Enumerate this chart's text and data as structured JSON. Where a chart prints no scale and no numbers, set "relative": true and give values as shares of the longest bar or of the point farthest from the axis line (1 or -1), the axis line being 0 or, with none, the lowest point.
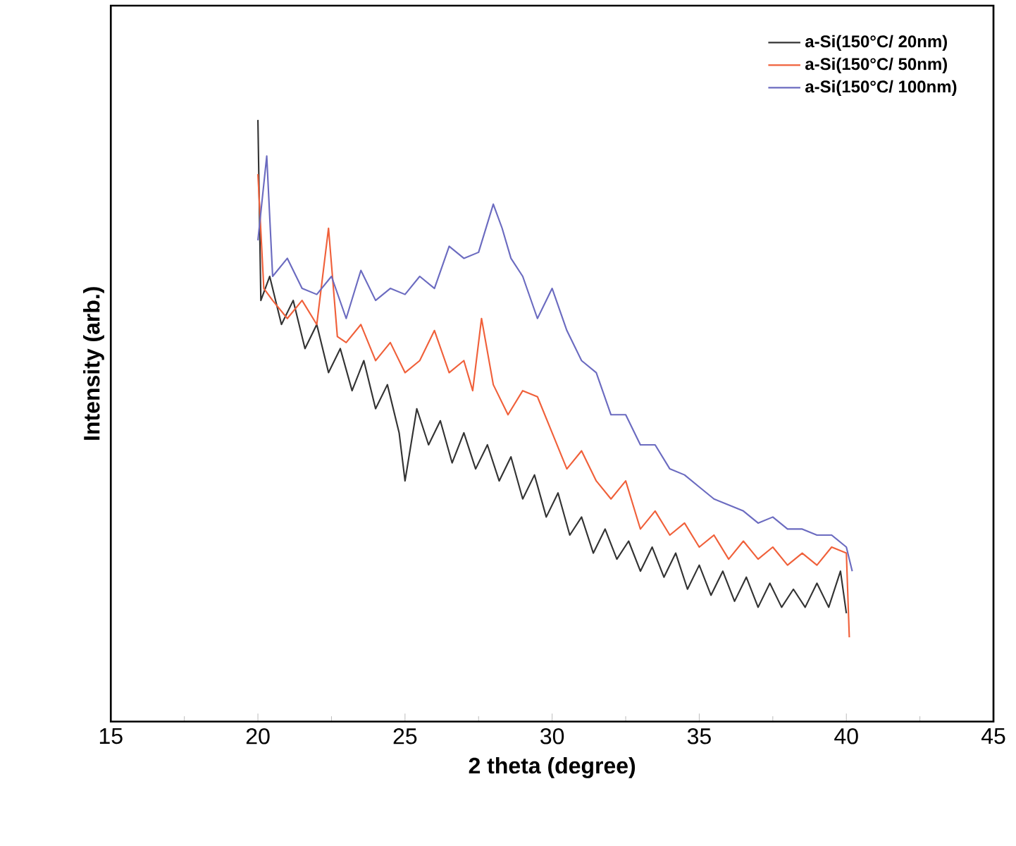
{
  "chart_data": {
    "type": "line",
    "xlabel": "2 theta (degree)",
    "ylabel": "Intensity (arb.)",
    "relative": true,
    "xlim": [
      15,
      45
    ],
    "xticks": [
      15,
      20,
      25,
      30,
      35,
      40,
      45
    ],
    "grid": false,
    "legend": "top right",
    "marker": "none",
    "line_style": "solid",
    "series": [
      {
        "name": "a-Si(150°C/ 20nm)",
        "color": "#333333",
        "x": [
          20.0,
          20.1,
          20.4,
          20.8,
          21.2,
          21.6,
          22.0,
          22.4,
          22.8,
          23.2,
          23.6,
          24.0,
          24.4,
          24.8,
          25.0,
          25.4,
          25.8,
          26.2,
          26.6,
          27.0,
          27.4,
          27.8,
          28.2,
          28.6,
          29.0,
          29.4,
          29.8,
          30.2,
          30.6,
          31.0,
          31.4,
          31.8,
          32.2,
          32.6,
          33.0,
          33.4,
          33.8,
          34.2,
          34.6,
          35.0,
          35.4,
          35.8,
          36.2,
          36.6,
          37.0,
          37.4,
          37.8,
          38.2,
          38.6,
          39.0,
          39.4,
          39.8,
          40.0
        ],
        "values": [
          1.0,
          0.7,
          0.74,
          0.66,
          0.7,
          0.62,
          0.66,
          0.58,
          0.62,
          0.55,
          0.6,
          0.52,
          0.56,
          0.48,
          0.4,
          0.52,
          0.46,
          0.5,
          0.43,
          0.48,
          0.42,
          0.46,
          0.4,
          0.44,
          0.37,
          0.41,
          0.34,
          0.38,
          0.31,
          0.34,
          0.28,
          0.32,
          0.27,
          0.3,
          0.25,
          0.29,
          0.24,
          0.28,
          0.22,
          0.26,
          0.21,
          0.25,
          0.2,
          0.24,
          0.19,
          0.23,
          0.19,
          0.22,
          0.19,
          0.23,
          0.19,
          0.25,
          0.18
        ]
      },
      {
        "name": "a-Si(150°C/ 50nm)",
        "color": "#f0603a",
        "x": [
          20.0,
          20.2,
          20.5,
          21.0,
          21.5,
          22.0,
          22.4,
          22.7,
          23.0,
          23.5,
          24.0,
          24.5,
          25.0,
          25.5,
          26.0,
          26.5,
          27.0,
          27.3,
          27.6,
          28.0,
          28.5,
          29.0,
          29.5,
          30.0,
          30.5,
          31.0,
          31.5,
          32.0,
          32.5,
          33.0,
          33.5,
          34.0,
          34.5,
          35.0,
          35.5,
          36.0,
          36.5,
          37.0,
          37.5,
          38.0,
          38.5,
          39.0,
          39.5,
          40.0,
          40.1
        ],
        "values": [
          0.91,
          0.72,
          0.7,
          0.67,
          0.7,
          0.66,
          0.82,
          0.64,
          0.63,
          0.66,
          0.6,
          0.63,
          0.58,
          0.6,
          0.65,
          0.58,
          0.6,
          0.55,
          0.67,
          0.56,
          0.51,
          0.55,
          0.54,
          0.48,
          0.42,
          0.45,
          0.4,
          0.37,
          0.4,
          0.32,
          0.35,
          0.31,
          0.33,
          0.29,
          0.31,
          0.27,
          0.3,
          0.27,
          0.29,
          0.26,
          0.28,
          0.26,
          0.29,
          0.28,
          0.14
        ]
      },
      {
        "name": "a-Si(150°C/ 100nm)",
        "color": "#6b6bc0",
        "x": [
          20.0,
          20.3,
          20.5,
          21.0,
          21.5,
          22.0,
          22.5,
          23.0,
          23.5,
          24.0,
          24.5,
          25.0,
          25.5,
          26.0,
          26.5,
          27.0,
          27.5,
          28.0,
          28.3,
          28.6,
          29.0,
          29.5,
          30.0,
          30.5,
          31.0,
          31.5,
          32.0,
          32.5,
          33.0,
          33.5,
          34.0,
          34.5,
          35.0,
          35.5,
          36.0,
          36.5,
          37.0,
          37.5,
          38.0,
          38.5,
          39.0,
          39.5,
          40.0,
          40.2
        ],
        "values": [
          0.8,
          0.94,
          0.74,
          0.77,
          0.72,
          0.71,
          0.74,
          0.67,
          0.75,
          0.7,
          0.72,
          0.71,
          0.74,
          0.72,
          0.79,
          0.77,
          0.78,
          0.86,
          0.82,
          0.77,
          0.74,
          0.67,
          0.72,
          0.65,
          0.6,
          0.58,
          0.51,
          0.51,
          0.46,
          0.46,
          0.42,
          0.41,
          0.39,
          0.37,
          0.36,
          0.35,
          0.33,
          0.34,
          0.32,
          0.32,
          0.31,
          0.31,
          0.29,
          0.25
        ]
      }
    ]
  }
}
